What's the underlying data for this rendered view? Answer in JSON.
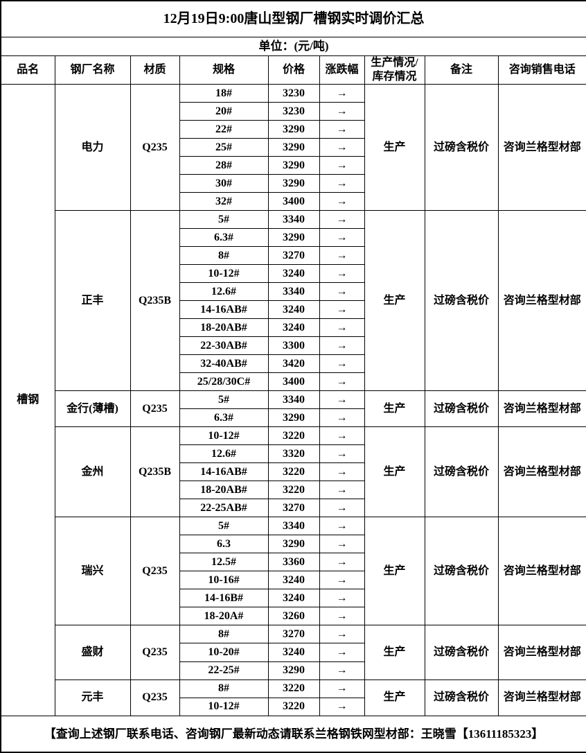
{
  "title": "12月19日9:00唐山型钢厂槽钢实时调价汇总",
  "unit_label": "单位：(元/吨)",
  "columns": [
    "品名",
    "钢厂名称",
    "材质",
    "规格",
    "价格",
    "涨跌幅",
    "生产情况/库存情况",
    "备注",
    "咨询销售电话"
  ],
  "product_name": "槽钢",
  "trend_arrow": "→",
  "mills": [
    {
      "name": "电力",
      "material": "Q235",
      "production": "生产",
      "note": "过磅含税价",
      "phone": "咨询兰格型材部",
      "rows": [
        {
          "spec": "18#",
          "price": "3230"
        },
        {
          "spec": "20#",
          "price": "3230"
        },
        {
          "spec": "22#",
          "price": "3290"
        },
        {
          "spec": "25#",
          "price": "3290"
        },
        {
          "spec": "28#",
          "price": "3290"
        },
        {
          "spec": "30#",
          "price": "3290"
        },
        {
          "spec": "32#",
          "price": "3400"
        }
      ]
    },
    {
      "name": "正丰",
      "material": "Q235B",
      "production": "生产",
      "note": "过磅含税价",
      "phone": "咨询兰格型材部",
      "rows": [
        {
          "spec": "5#",
          "price": "3340"
        },
        {
          "spec": "6.3#",
          "price": "3290"
        },
        {
          "spec": "8#",
          "price": "3270"
        },
        {
          "spec": "10-12#",
          "price": "3240"
        },
        {
          "spec": "12.6#",
          "price": "3340"
        },
        {
          "spec": "14-16AB#",
          "price": "3240"
        },
        {
          "spec": "18-20AB#",
          "price": "3240"
        },
        {
          "spec": "22-30AB#",
          "price": "3300"
        },
        {
          "spec": "32-40AB#",
          "price": "3420"
        },
        {
          "spec": "25/28/30C#",
          "price": "3400"
        }
      ]
    },
    {
      "name": "金行(薄槽)",
      "material": "Q235",
      "production": "生产",
      "note": "过磅含税价",
      "phone": "咨询兰格型材部",
      "rows": [
        {
          "spec": "5#",
          "price": "3340"
        },
        {
          "spec": "6.3#",
          "price": "3290"
        }
      ]
    },
    {
      "name": "金州",
      "material": "Q235B",
      "production": "生产",
      "note": "过磅含税价",
      "phone": "咨询兰格型材部",
      "rows": [
        {
          "spec": "10-12#",
          "price": "3220"
        },
        {
          "spec": "12.6#",
          "price": "3320"
        },
        {
          "spec": "14-16AB#",
          "price": "3220"
        },
        {
          "spec": "18-20AB#",
          "price": "3220"
        },
        {
          "spec": "22-25AB#",
          "price": "3270"
        }
      ]
    },
    {
      "name": "瑞兴",
      "material": "Q235",
      "production": "生产",
      "note": "过磅含税价",
      "phone": "咨询兰格型材部",
      "rows": [
        {
          "spec": "5#",
          "price": "3340"
        },
        {
          "spec": "6.3",
          "price": "3290"
        },
        {
          "spec": "12.5#",
          "price": "3360"
        },
        {
          "spec": "10-16#",
          "price": "3240"
        },
        {
          "spec": "14-16B#",
          "price": "3240"
        },
        {
          "spec": "18-20A#",
          "price": "3260"
        }
      ]
    },
    {
      "name": "盛财",
      "material": "Q235",
      "production": "生产",
      "note": "过磅含税价",
      "phone": "咨询兰格型材部",
      "rows": [
        {
          "spec": "8#",
          "price": "3270"
        },
        {
          "spec": "10-20#",
          "price": "3240"
        },
        {
          "spec": "22-25#",
          "price": "3290"
        }
      ]
    },
    {
      "name": "元丰",
      "material": "Q235",
      "production": "生产",
      "note": "过磅含税价",
      "phone": "咨询兰格型材部",
      "rows": [
        {
          "spec": "8#",
          "price": "3220"
        },
        {
          "spec": "10-12#",
          "price": "3220"
        }
      ]
    }
  ],
  "footer": "【查询上述钢厂联系电话、咨询钢厂最新动态请联系兰格钢铁网型材部：王晓雪【13611185323】"
}
